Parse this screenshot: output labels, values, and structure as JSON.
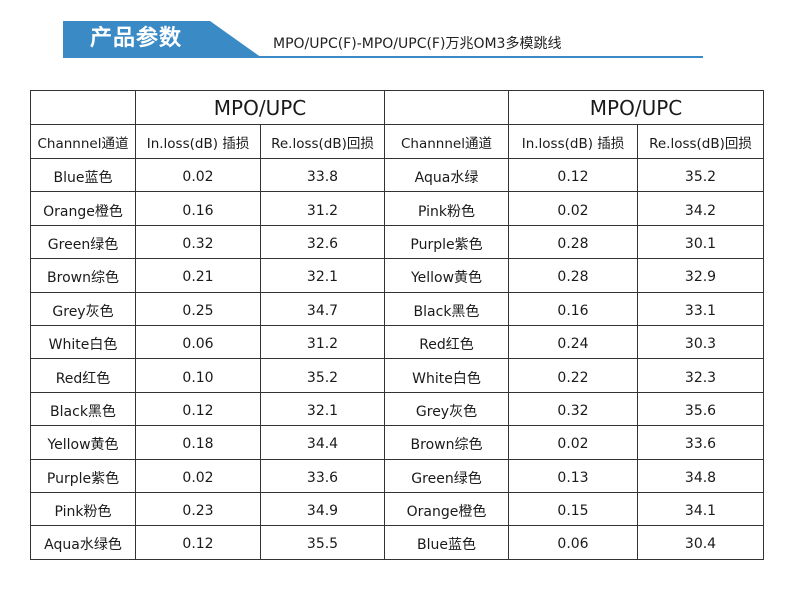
{
  "header": {
    "banner_title": "产品参数",
    "subtitle": "MPO/UPC(F)-MPO/UPC(F)万兆OM3多模跳线",
    "accent_color": "#3a8ac6"
  },
  "table": {
    "groups": [
      "MPO/UPC",
      "MPO/UPC"
    ],
    "columns": [
      "Channnel通道",
      "In.loss(dB) 插损",
      "Re.loss(dB)回损",
      "Channnel通道",
      "In.loss(dB) 插损",
      "Re.loss(dB)回损"
    ],
    "rows": [
      [
        "Blue蓝色",
        "0.02",
        "33.8",
        "Aqua水绿",
        "0.12",
        "35.2"
      ],
      [
        "Orange橙色",
        "0.16",
        "31.2",
        "Pink粉色",
        "0.02",
        "34.2"
      ],
      [
        "Green绿色",
        "0.32",
        "32.6",
        "Purple紫色",
        "0.28",
        "30.1"
      ],
      [
        "Brown综色",
        "0.21",
        "32.1",
        "Yellow黄色",
        "0.28",
        "32.9"
      ],
      [
        "Grey灰色",
        "0.25",
        "34.7",
        "Black黑色",
        "0.16",
        "33.1"
      ],
      [
        "White白色",
        "0.06",
        "31.2",
        "Red红色",
        "0.24",
        "30.3"
      ],
      [
        "Red红色",
        "0.10",
        "35.2",
        "White白色",
        "0.22",
        "32.3"
      ],
      [
        "Black黑色",
        "0.12",
        "32.1",
        "Grey灰色",
        "0.32",
        "35.6"
      ],
      [
        "Yellow黄色",
        "0.18",
        "34.4",
        "Brown综色",
        "0.02",
        "33.6"
      ],
      [
        "Purple紫色",
        "0.02",
        "33.6",
        "Green绿色",
        "0.13",
        "34.8"
      ],
      [
        "Pink粉色",
        "0.23",
        "34.9",
        "Orange橙色",
        "0.15",
        "34.1"
      ],
      [
        "Aqua水绿色",
        "0.12",
        "35.5",
        "Blue蓝色",
        "0.06",
        "30.4"
      ]
    ]
  }
}
